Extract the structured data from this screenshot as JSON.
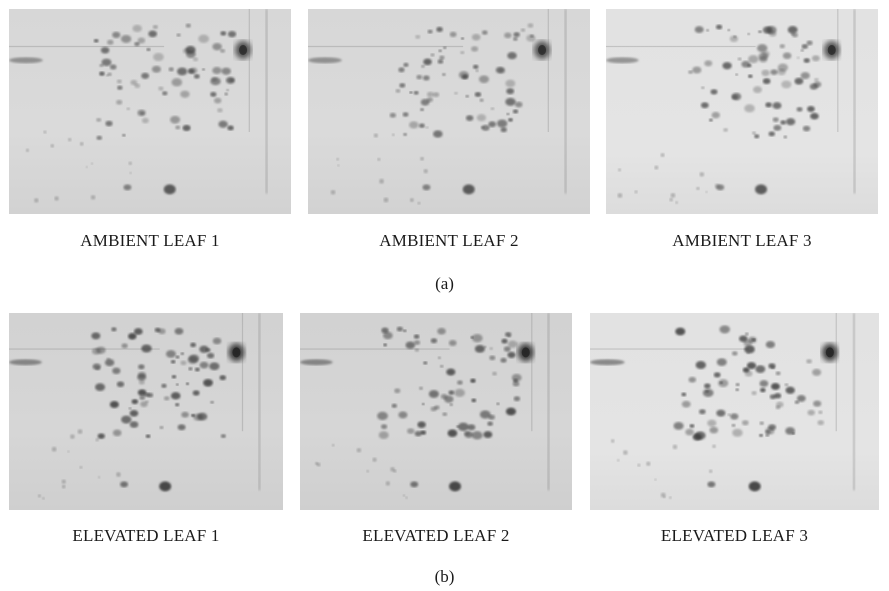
{
  "figure": {
    "section_a": {
      "label": "(a)",
      "gels": [
        {
          "caption": "AMBIENT LEAF 1"
        },
        {
          "caption": "AMBIENT LEAF 2"
        },
        {
          "caption": "AMBIENT LEAF 3"
        }
      ]
    },
    "section_b": {
      "label": "(b)",
      "gels": [
        {
          "caption": "ELEVATED LEAF 1"
        },
        {
          "caption": "ELEVATED LEAF 2"
        },
        {
          "caption": "ELEVATED LEAF 3"
        }
      ]
    }
  }
}
